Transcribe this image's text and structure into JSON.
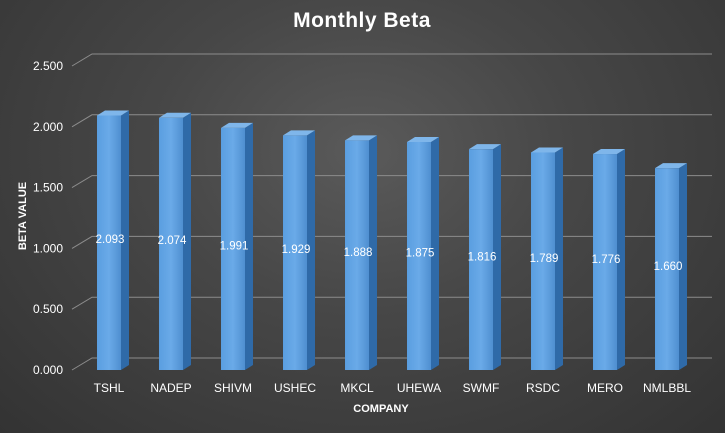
{
  "chart_data": {
    "type": "bar",
    "title": "Monthly Beta",
    "xlabel": "COMPANY",
    "ylabel": "BETA VALUE",
    "categories": [
      "TSHL",
      "NADEP",
      "SHIVM",
      "USHEC",
      "MKCL",
      "UHEWA",
      "SWMF",
      "RSDC",
      "MERO",
      "NMLBBL"
    ],
    "values": [
      2.093,
      2.074,
      1.991,
      1.929,
      1.888,
      1.875,
      1.816,
      1.789,
      1.776,
      1.66
    ],
    "data_labels": [
      "2.093",
      "2.074",
      "1.991",
      "1.929",
      "1.888",
      "1.875",
      "1.816",
      "1.789",
      "1.776",
      "1.660"
    ],
    "ylim": [
      0,
      2.5
    ],
    "yticks": [
      0,
      0.5,
      1.0,
      1.5,
      2.0,
      2.5
    ],
    "ytick_labels": [
      "0.000",
      "0.500",
      "1.000",
      "1.500",
      "2.000",
      "2.500"
    ],
    "grid": true,
    "legend": "none",
    "bar_color": "#5b9bd5",
    "background_color": "#404040"
  }
}
